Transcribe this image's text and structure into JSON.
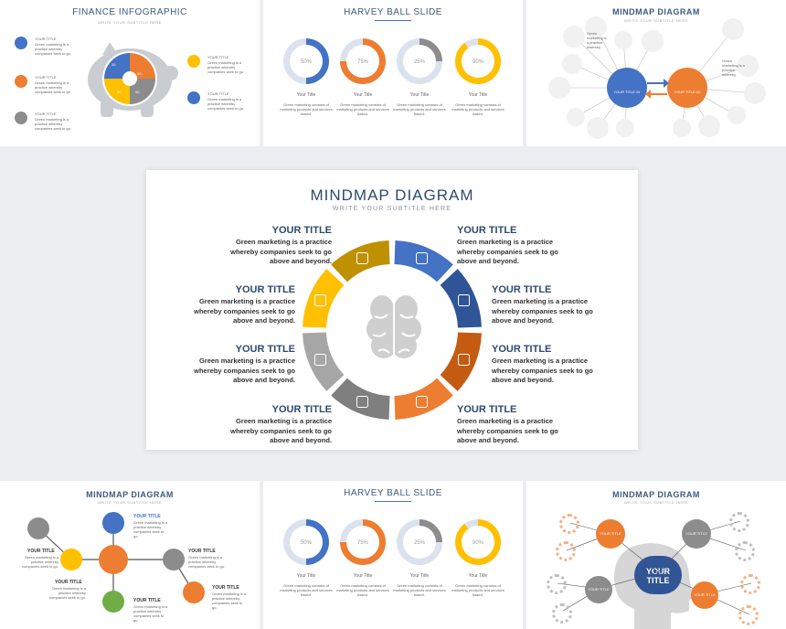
{
  "finance": {
    "title": "FINANCE INFOGRAPHIC",
    "subtitle": "WRITE YOUR SUBTITLE HERE",
    "item_title": "YOUR TITLE",
    "item_text": "Green marketing is a practice whereby companies seek to go",
    "pie_values": [
      "20",
      "30",
      "50",
      "30"
    ]
  },
  "harvey_top": {
    "title": "HARVEY BALL SLIDE",
    "balls": [
      {
        "value": "50%",
        "label": "Your Title",
        "color": "#4472c4"
      },
      {
        "value": "75%",
        "label": "Your Title",
        "color": "#ed7d31"
      },
      {
        "value": "25%",
        "label": "Your Title",
        "color": "#8c8c8c"
      },
      {
        "value": "90%",
        "label": "Your Title",
        "color": "#ffc000"
      }
    ],
    "text": "Green marketing consists of marketing products and services based."
  },
  "mindmap_top": {
    "title": "MINDMAP DIAGRAM",
    "subtitle": "WRITE YOUR SUBTITLE HERE",
    "center_left": "YOUR TITLE 01",
    "center_right": "YOUR TITLE 02",
    "node_text": "Green marketing is a practice whereby"
  },
  "main": {
    "title": "MINDMAP DIAGRAM",
    "subtitle": "WRITE YOUR SUBTITLE HERE",
    "items_left": [
      {
        "title": "YOUR TITLE",
        "text": "Green marketing is a practice whereby companies seek to go above and beyond."
      },
      {
        "title": "YOUR TITLE",
        "text": "Green marketing is a practice whereby companies seek to go above and beyond."
      },
      {
        "title": "YOUR TITLE",
        "text": "Green marketing is a practice whereby companies seek to go above and beyond."
      },
      {
        "title": "YOUR TITLE",
        "text": "Green marketing is a practice whereby companies seek to go above and beyond."
      }
    ],
    "items_right": [
      {
        "title": "YOUR TITLE",
        "text": "Green marketing is a practice whereby companies seek to go above and beyond."
      },
      {
        "title": "YOUR TITLE",
        "text": "Green marketing is a practice whereby companies seek to go above and beyond."
      },
      {
        "title": "YOUR TITLE",
        "text": "Green marketing is a practice whereby companies seek to go above and beyond."
      },
      {
        "title": "YOUR TITLE",
        "text": "Green marketing is a practice whereby companies seek to go above and beyond."
      }
    ],
    "segment_colors": [
      "#4472c4",
      "#2f5597",
      "#c55a11",
      "#ed7d31",
      "#7f7f7f",
      "#a6a6a6",
      "#ffc000",
      "#bf9000"
    ]
  },
  "mindmap_bl": {
    "title": "MINDMAP DIAGRAM",
    "subtitle": "WRITE YOUR SUBTITLE HERE",
    "item_title": "YOUR TITLE",
    "item_text": "Green marketing is a practice whereby companies seek to go."
  },
  "harvey_bottom": {
    "title": "HARVEY BALL SLIDE",
    "balls": [
      {
        "value": "50%",
        "label": "Your Title",
        "color": "#4472c4"
      },
      {
        "value": "75%",
        "label": "Your Title",
        "color": "#ed7d31"
      },
      {
        "value": "25%",
        "label": "Your Title",
        "color": "#8c8c8c"
      },
      {
        "value": "90%",
        "label": "Your Title",
        "color": "#ffc000"
      }
    ],
    "text": "Green marketing consists of marketing products and services based."
  },
  "mindmap_br": {
    "title": "MINDMAP DIAGRAM",
    "subtitle": "WRITE YOUR SUBTITLE HERE",
    "center": "YOUR TITLE",
    "gear_label": "YOUR TITLE"
  }
}
